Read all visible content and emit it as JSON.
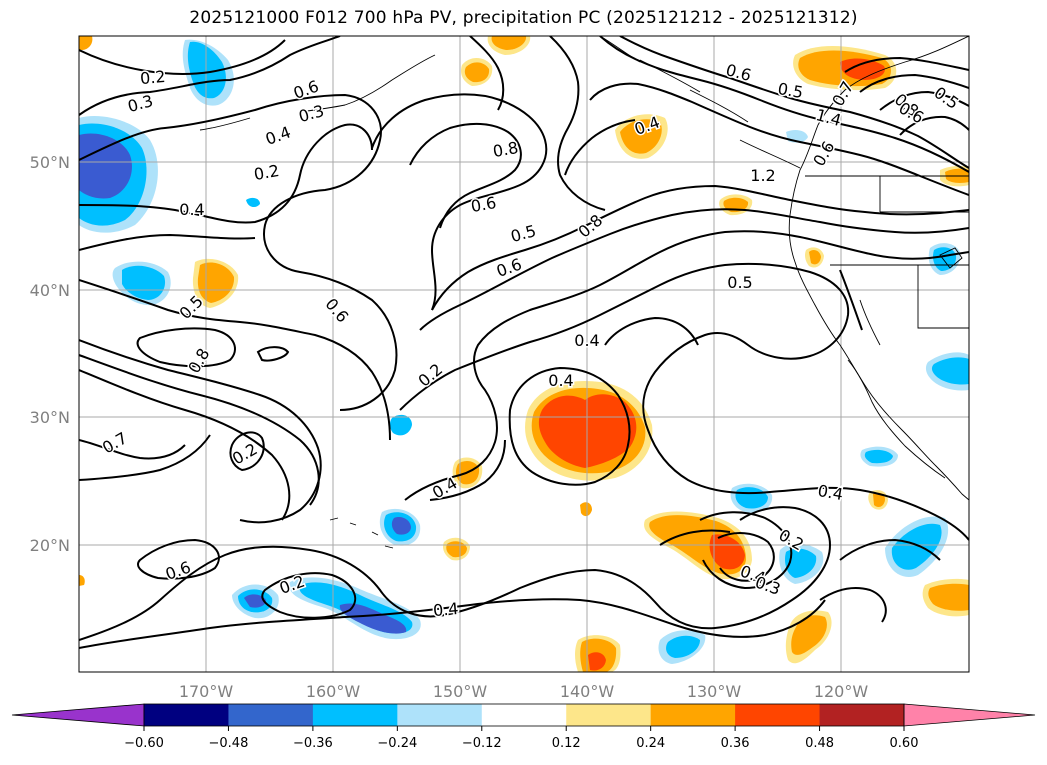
{
  "title": "2025121000 F012 700 hPa PV, precipitation PC (2025121212 - 2025121312)",
  "map": {
    "lon_labels": [
      "170°W",
      "160°W",
      "150°W",
      "140°W",
      "130°W",
      "120°W"
    ],
    "lat_labels": [
      "50°N",
      "40°N",
      "30°N",
      "20°N"
    ],
    "contour_labels": [
      "0.2",
      "0.3",
      "0.6",
      "0.4",
      "0.3",
      "0.2",
      "0.4",
      "0.5",
      "0.8",
      "0.6",
      "0.7",
      "0.2",
      "0.6",
      "0.2",
      "0.4",
      "0.2",
      "0.4",
      "0.4",
      "0.4",
      "0.6",
      "0.8",
      "0.5",
      "0.6",
      "0.8",
      "0.5",
      "0.4",
      "0.2",
      "0.4",
      "0.3",
      "0.4",
      "0.6",
      "0.5",
      "1.4",
      "1.2",
      "0.8",
      "0.6",
      "0.5",
      "0.6",
      "0.7",
      "0.5",
      "1.0"
    ],
    "shading_colors": {
      "neg_strong": "#3a5bd1",
      "neg_mid": "#00bfff",
      "neg_weak": "#aee2fa",
      "pos_weak": "#fde68a",
      "pos_mid": "#ffa500",
      "pos_strong": "#ff4500",
      "pos_max": "#b22222"
    }
  },
  "colorbar": {
    "ticks": [
      "−0.60",
      "−0.48",
      "−0.36",
      "−0.24",
      "−0.12",
      "0.12",
      "0.24",
      "0.36",
      "0.48",
      "0.60"
    ],
    "colors": [
      "#9933cc",
      "#000080",
      "#3366cc",
      "#00bfff",
      "#aee2fa",
      "#ffffff",
      "#fde68a",
      "#ffa500",
      "#ff4500",
      "#b22222",
      "#ff82a9",
      "#ff82a9"
    ]
  }
}
